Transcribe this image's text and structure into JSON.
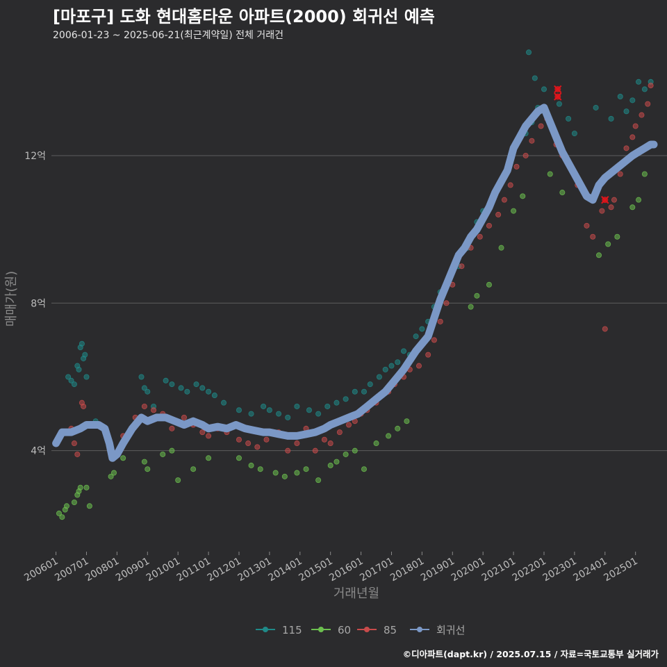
{
  "title": "[마포구] 도화 현대홈타운 아파트(2000) 회귀선 예측",
  "subtitle": "2006-01-23 ~ 2025-06-21(최근계약일) 전체 거래건",
  "footer": "©디아파트(dapt.kr) / 2025.07.15 / 자료=국토교통부 실거래가",
  "chart_data": {
    "type": "scatter",
    "xlabel": "거래년월",
    "ylabel": "매매가(원)",
    "xlim": [
      2005.85,
      2025.85
    ],
    "ylim": [
      1.3,
      14.9
    ],
    "x_ticks": [
      2006,
      2007,
      2008,
      2009,
      2010,
      2011,
      2012,
      2013,
      2014,
      2015,
      2016,
      2017,
      2018,
      2019,
      2020,
      2021,
      2022,
      2023,
      2024,
      2025
    ],
    "x_tick_labels": [
      "200601",
      "200701",
      "200801",
      "200901",
      "201001",
      "201101",
      "201201",
      "201301",
      "201401",
      "201501",
      "201601",
      "201701",
      "201801",
      "201901",
      "202001",
      "202101",
      "202201",
      "202301",
      "202401",
      "202501"
    ],
    "y_ticks": [
      4,
      8,
      12
    ],
    "y_tick_labels": [
      "4억",
      "8억",
      "12억"
    ],
    "grid": true,
    "legend_position": "bottom",
    "colors": {
      "115": "#1f8a88",
      "60": "#6cbf4f",
      "85": "#c84b4b",
      "회귀선": "#7b98c6",
      "highlight": "#e0151b"
    },
    "legend": [
      {
        "key": "115",
        "label": "115"
      },
      {
        "key": "60",
        "label": "60"
      },
      {
        "key": "85",
        "label": "85"
      },
      {
        "key": "회귀선",
        "label": "회귀선"
      }
    ],
    "series": [
      {
        "name": "115",
        "points": [
          [
            2006.4,
            6.0
          ],
          [
            2006.5,
            5.9
          ],
          [
            2006.6,
            5.8
          ],
          [
            2006.7,
            6.3
          ],
          [
            2006.75,
            6.2
          ],
          [
            2006.8,
            6.8
          ],
          [
            2006.85,
            6.9
          ],
          [
            2006.9,
            6.5
          ],
          [
            2006.95,
            6.6
          ],
          [
            2007.0,
            6.0
          ],
          [
            2007.3,
            4.8
          ],
          [
            2008.8,
            6.0
          ],
          [
            2008.9,
            5.7
          ],
          [
            2009.0,
            5.6
          ],
          [
            2009.2,
            5.2
          ],
          [
            2009.6,
            5.9
          ],
          [
            2009.8,
            5.8
          ],
          [
            2010.1,
            5.7
          ],
          [
            2010.3,
            5.6
          ],
          [
            2010.6,
            5.8
          ],
          [
            2010.8,
            5.7
          ],
          [
            2011.0,
            5.6
          ],
          [
            2011.2,
            5.5
          ],
          [
            2011.5,
            5.3
          ],
          [
            2012.0,
            5.1
          ],
          [
            2012.4,
            5.0
          ],
          [
            2012.8,
            5.2
          ],
          [
            2013.0,
            5.1
          ],
          [
            2013.3,
            5.0
          ],
          [
            2013.6,
            4.9
          ],
          [
            2013.9,
            5.2
          ],
          [
            2014.3,
            5.1
          ],
          [
            2014.6,
            5.0
          ],
          [
            2014.9,
            5.2
          ],
          [
            2015.2,
            5.3
          ],
          [
            2015.5,
            5.4
          ],
          [
            2015.8,
            5.6
          ],
          [
            2016.1,
            5.6
          ],
          [
            2016.3,
            5.8
          ],
          [
            2016.6,
            6.0
          ],
          [
            2016.8,
            6.2
          ],
          [
            2017.0,
            6.3
          ],
          [
            2017.2,
            6.4
          ],
          [
            2017.4,
            6.7
          ],
          [
            2017.6,
            6.6
          ],
          [
            2017.8,
            7.1
          ],
          [
            2018.0,
            7.3
          ],
          [
            2018.2,
            7.5
          ],
          [
            2018.4,
            7.9
          ],
          [
            2018.6,
            8.3
          ],
          [
            2019.2,
            9.0
          ],
          [
            2019.5,
            9.5
          ],
          [
            2019.8,
            10.2
          ],
          [
            2020.0,
            10.5
          ],
          [
            2020.3,
            10.8
          ],
          [
            2020.5,
            11.2
          ],
          [
            2020.7,
            11.5
          ],
          [
            2020.9,
            11.8
          ],
          [
            2021.0,
            12.2
          ],
          [
            2021.2,
            12.5
          ],
          [
            2021.4,
            12.6
          ],
          [
            2021.6,
            12.9
          ],
          [
            2021.8,
            13.3
          ],
          [
            2022.0,
            13.8
          ],
          [
            2021.7,
            14.1
          ],
          [
            2021.5,
            14.8
          ],
          [
            2022.2,
            15.2
          ],
          [
            2022.5,
            13.4
          ],
          [
            2022.8,
            13.0
          ],
          [
            2023.0,
            12.6
          ],
          [
            2023.7,
            13.3
          ],
          [
            2024.2,
            13.0
          ],
          [
            2024.5,
            13.6
          ],
          [
            2024.7,
            13.2
          ],
          [
            2024.9,
            13.5
          ],
          [
            2025.1,
            14.0
          ],
          [
            2025.3,
            13.8
          ],
          [
            2025.5,
            14.0
          ]
        ]
      },
      {
        "name": "60",
        "points": [
          [
            2006.1,
            2.3
          ],
          [
            2006.2,
            2.2
          ],
          [
            2006.3,
            2.4
          ],
          [
            2006.35,
            2.5
          ],
          [
            2006.6,
            2.6
          ],
          [
            2006.7,
            2.8
          ],
          [
            2006.75,
            2.9
          ],
          [
            2006.8,
            3.0
          ],
          [
            2007.0,
            3.0
          ],
          [
            2007.1,
            2.5
          ],
          [
            2007.8,
            3.3
          ],
          [
            2007.9,
            3.4
          ],
          [
            2008.2,
            3.8
          ],
          [
            2008.9,
            3.7
          ],
          [
            2009.0,
            3.5
          ],
          [
            2009.5,
            3.9
          ],
          [
            2009.8,
            4.0
          ],
          [
            2010.0,
            3.2
          ],
          [
            2010.5,
            3.5
          ],
          [
            2011.0,
            3.8
          ],
          [
            2012.0,
            3.8
          ],
          [
            2012.4,
            3.6
          ],
          [
            2012.7,
            3.5
          ],
          [
            2013.2,
            3.4
          ],
          [
            2013.5,
            3.3
          ],
          [
            2013.9,
            3.4
          ],
          [
            2014.2,
            3.5
          ],
          [
            2014.6,
            3.2
          ],
          [
            2015.0,
            3.6
          ],
          [
            2015.2,
            3.7
          ],
          [
            2015.5,
            3.9
          ],
          [
            2015.8,
            4.0
          ],
          [
            2016.1,
            3.5
          ],
          [
            2016.5,
            4.2
          ],
          [
            2016.9,
            4.4
          ],
          [
            2017.2,
            4.6
          ],
          [
            2017.5,
            4.8
          ],
          [
            2019.6,
            7.9
          ],
          [
            2019.8,
            8.2
          ],
          [
            2020.2,
            8.5
          ],
          [
            2020.6,
            9.5
          ],
          [
            2021.0,
            10.5
          ],
          [
            2021.3,
            10.9
          ],
          [
            2022.2,
            11.5
          ],
          [
            2022.6,
            11.0
          ],
          [
            2023.8,
            9.3
          ],
          [
            2024.1,
            9.6
          ],
          [
            2024.4,
            9.8
          ],
          [
            2024.9,
            10.6
          ],
          [
            2025.1,
            10.8
          ],
          [
            2025.3,
            11.5
          ]
        ]
      },
      {
        "name": "85",
        "points": [
          [
            2006.5,
            4.6
          ],
          [
            2006.6,
            4.2
          ],
          [
            2006.7,
            3.9
          ],
          [
            2006.85,
            5.3
          ],
          [
            2006.9,
            5.2
          ],
          [
            2007.2,
            4.7
          ],
          [
            2007.6,
            4.6
          ],
          [
            2008.2,
            4.4
          ],
          [
            2008.6,
            4.9
          ],
          [
            2008.9,
            5.2
          ],
          [
            2009.2,
            5.1
          ],
          [
            2009.5,
            5.0
          ],
          [
            2009.8,
            4.6
          ],
          [
            2010.2,
            4.9
          ],
          [
            2010.5,
            4.7
          ],
          [
            2010.8,
            4.5
          ],
          [
            2011.0,
            4.4
          ],
          [
            2011.3,
            4.6
          ],
          [
            2011.6,
            4.5
          ],
          [
            2012.0,
            4.3
          ],
          [
            2012.3,
            4.2
          ],
          [
            2012.6,
            4.1
          ],
          [
            2012.9,
            4.3
          ],
          [
            2013.3,
            4.5
          ],
          [
            2013.6,
            4.0
          ],
          [
            2013.9,
            4.2
          ],
          [
            2014.2,
            4.6
          ],
          [
            2014.5,
            4.0
          ],
          [
            2014.8,
            4.3
          ],
          [
            2015.0,
            4.2
          ],
          [
            2015.3,
            4.5
          ],
          [
            2015.6,
            4.7
          ],
          [
            2015.8,
            4.8
          ],
          [
            2016.0,
            5.0
          ],
          [
            2016.2,
            5.1
          ],
          [
            2016.5,
            5.3
          ],
          [
            2016.7,
            5.5
          ],
          [
            2016.9,
            5.6
          ],
          [
            2017.1,
            5.8
          ],
          [
            2017.4,
            6.0
          ],
          [
            2017.6,
            6.2
          ],
          [
            2017.9,
            6.3
          ],
          [
            2018.2,
            6.6
          ],
          [
            2018.4,
            7.0
          ],
          [
            2018.6,
            7.5
          ],
          [
            2018.8,
            8.0
          ],
          [
            2019.0,
            8.5
          ],
          [
            2019.3,
            9.0
          ],
          [
            2019.6,
            9.5
          ],
          [
            2019.9,
            9.8
          ],
          [
            2020.2,
            10.1
          ],
          [
            2020.5,
            10.4
          ],
          [
            2020.7,
            10.8
          ],
          [
            2020.9,
            11.2
          ],
          [
            2021.1,
            11.7
          ],
          [
            2021.4,
            12.0
          ],
          [
            2021.6,
            12.4
          ],
          [
            2021.9,
            12.8
          ],
          [
            2022.1,
            13.0
          ],
          [
            2022.4,
            12.3
          ],
          [
            2022.6,
            12.0
          ],
          [
            2022.9,
            11.7
          ],
          [
            2023.1,
            11.2
          ],
          [
            2023.4,
            10.1
          ],
          [
            2023.6,
            9.8
          ],
          [
            2023.9,
            10.5
          ],
          [
            2024.0,
            7.3
          ],
          [
            2024.2,
            10.6
          ],
          [
            2024.3,
            10.8
          ],
          [
            2024.5,
            11.5
          ],
          [
            2024.7,
            12.2
          ],
          [
            2024.9,
            12.5
          ],
          [
            2025.0,
            12.8
          ],
          [
            2025.2,
            13.1
          ],
          [
            2025.4,
            13.4
          ],
          [
            2025.5,
            13.9
          ]
        ]
      }
    ],
    "highlight_points": [
      [
        2022.45,
        13.6
      ],
      [
        2022.45,
        13.8
      ],
      [
        2024.0,
        10.8
      ]
    ],
    "regression": [
      [
        2006.0,
        4.2
      ],
      [
        2006.2,
        4.5
      ],
      [
        2006.5,
        4.5
      ],
      [
        2006.8,
        4.6
      ],
      [
        2007.0,
        4.7
      ],
      [
        2007.4,
        4.7
      ],
      [
        2007.6,
        4.6
      ],
      [
        2007.75,
        4.2
      ],
      [
        2007.85,
        3.8
      ],
      [
        2008.0,
        3.9
      ],
      [
        2008.2,
        4.2
      ],
      [
        2008.5,
        4.6
      ],
      [
        2008.8,
        4.9
      ],
      [
        2009.0,
        4.8
      ],
      [
        2009.3,
        4.9
      ],
      [
        2009.6,
        4.9
      ],
      [
        2009.9,
        4.8
      ],
      [
        2010.2,
        4.7
      ],
      [
        2010.5,
        4.8
      ],
      [
        2010.8,
        4.7
      ],
      [
        2011.0,
        4.6
      ],
      [
        2011.3,
        4.65
      ],
      [
        2011.6,
        4.6
      ],
      [
        2011.9,
        4.7
      ],
      [
        2012.2,
        4.6
      ],
      [
        2012.5,
        4.55
      ],
      [
        2012.8,
        4.5
      ],
      [
        2013.0,
        4.5
      ],
      [
        2013.3,
        4.45
      ],
      [
        2013.6,
        4.4
      ],
      [
        2013.9,
        4.4
      ],
      [
        2014.2,
        4.45
      ],
      [
        2014.5,
        4.5
      ],
      [
        2014.8,
        4.6
      ],
      [
        2015.0,
        4.7
      ],
      [
        2015.3,
        4.8
      ],
      [
        2015.6,
        4.9
      ],
      [
        2015.9,
        5.0
      ],
      [
        2016.2,
        5.2
      ],
      [
        2016.5,
        5.4
      ],
      [
        2016.8,
        5.6
      ],
      [
        2017.0,
        5.8
      ],
      [
        2017.2,
        6.0
      ],
      [
        2017.4,
        6.2
      ],
      [
        2017.6,
        6.45
      ],
      [
        2017.8,
        6.7
      ],
      [
        2018.0,
        6.9
      ],
      [
        2018.2,
        7.1
      ],
      [
        2018.4,
        7.6
      ],
      [
        2018.6,
        8.1
      ],
      [
        2018.8,
        8.5
      ],
      [
        2019.0,
        8.9
      ],
      [
        2019.2,
        9.3
      ],
      [
        2019.4,
        9.5
      ],
      [
        2019.6,
        9.8
      ],
      [
        2019.8,
        10.0
      ],
      [
        2020.0,
        10.3
      ],
      [
        2020.2,
        10.6
      ],
      [
        2020.4,
        11.0
      ],
      [
        2020.6,
        11.3
      ],
      [
        2020.8,
        11.6
      ],
      [
        2021.0,
        12.2
      ],
      [
        2021.2,
        12.5
      ],
      [
        2021.4,
        12.8
      ],
      [
        2021.6,
        13.0
      ],
      [
        2021.8,
        13.2
      ],
      [
        2022.0,
        13.3
      ],
      [
        2022.2,
        12.9
      ],
      [
        2022.4,
        12.5
      ],
      [
        2022.6,
        12.1
      ],
      [
        2022.8,
        11.8
      ],
      [
        2023.0,
        11.5
      ],
      [
        2023.2,
        11.2
      ],
      [
        2023.4,
        10.9
      ],
      [
        2023.6,
        10.8
      ],
      [
        2023.8,
        11.2
      ],
      [
        2024.0,
        11.4
      ],
      [
        2024.3,
        11.6
      ],
      [
        2024.6,
        11.8
      ],
      [
        2024.9,
        12.0
      ],
      [
        2025.1,
        12.1
      ],
      [
        2025.3,
        12.2
      ],
      [
        2025.5,
        12.3
      ],
      [
        2025.6,
        12.3
      ]
    ]
  }
}
